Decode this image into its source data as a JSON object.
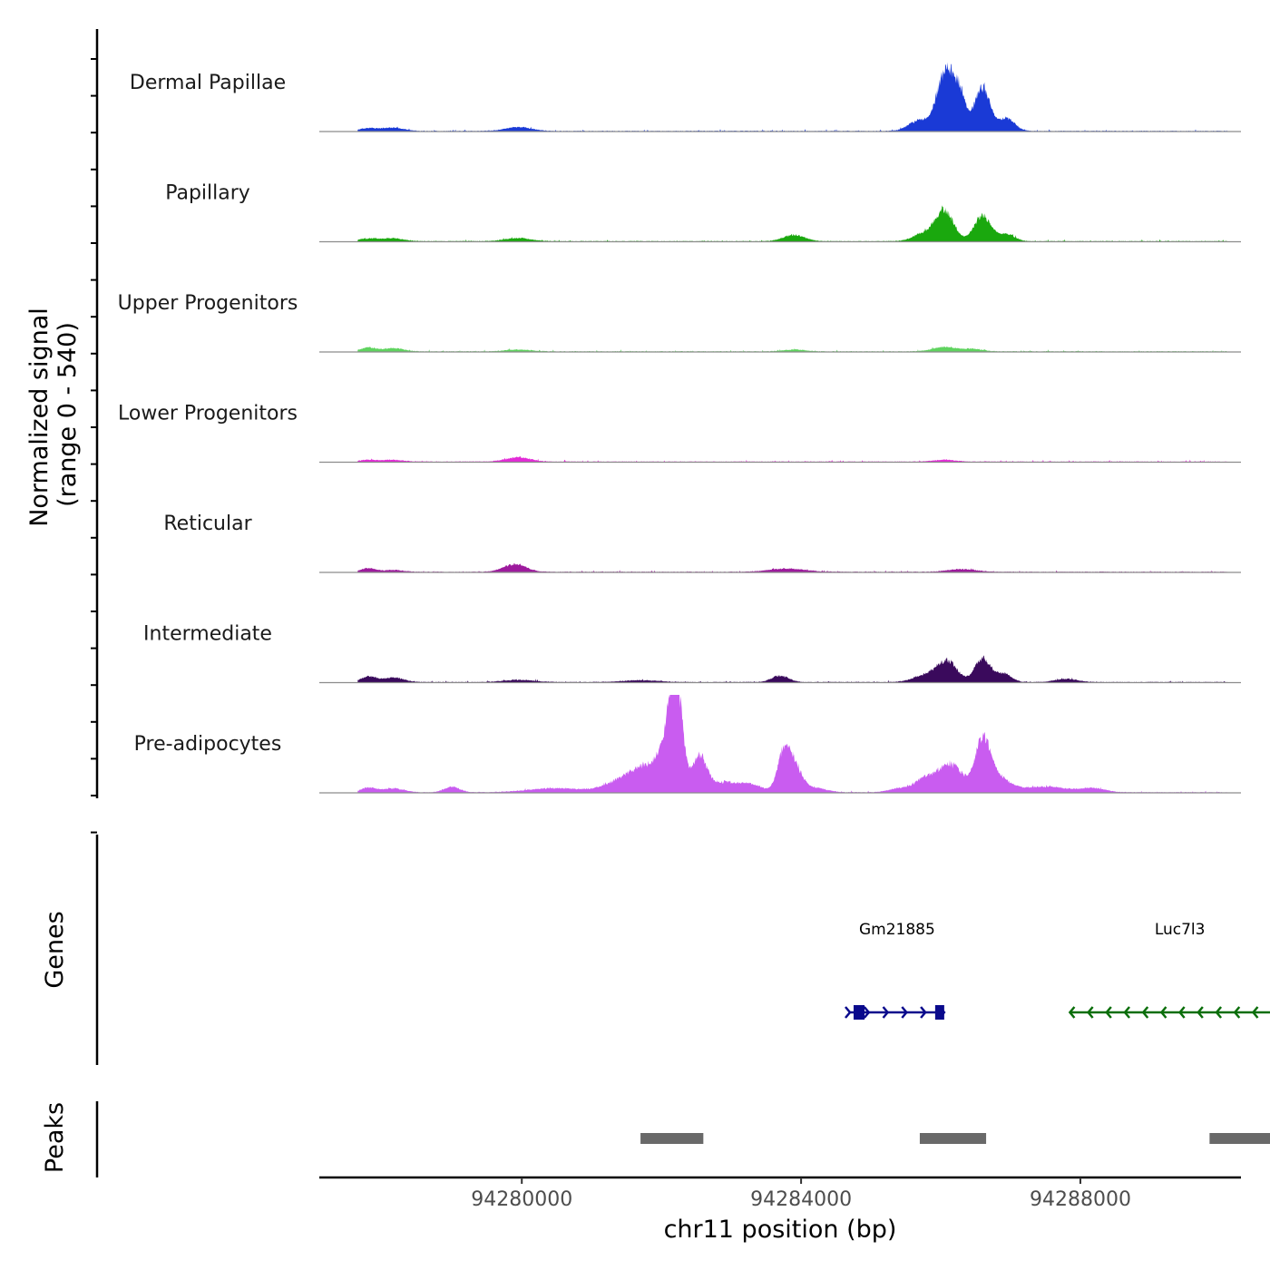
{
  "chart_data": {
    "type": "area",
    "subtype": "genome-coverage-track",
    "ylabel_line1": "Normalized signal",
    "ylabel_line2": "(range 0 - 540)",
    "yrange": [
      0,
      540
    ],
    "xlabel": "chr11 position (bp)",
    "chromosome": "chr11",
    "xlim": [
      94277100,
      94290300
    ],
    "xticks": [
      94280000,
      94284000,
      94288000
    ],
    "xtick_labels": [
      "94280000",
      "94284000",
      "94288000"
    ],
    "tracks": [
      {
        "name": "Dermal Papillae",
        "color": "#1a3ad6",
        "peaks": [
          {
            "center": 94277800,
            "height": 15,
            "width": 130
          },
          {
            "center": 94278150,
            "height": 18,
            "width": 150
          },
          {
            "center": 94279950,
            "height": 22,
            "width": 180
          },
          {
            "center": 94285700,
            "height": 60,
            "width": 150
          },
          {
            "center": 94286050,
            "height": 300,
            "width": 110
          },
          {
            "center": 94286250,
            "height": 220,
            "width": 100
          },
          {
            "center": 94286600,
            "height": 240,
            "width": 110
          },
          {
            "center": 94286950,
            "height": 70,
            "width": 110
          }
        ]
      },
      {
        "name": "Papillary",
        "color": "#1aa80e",
        "peaks": [
          {
            "center": 94277800,
            "height": 14,
            "width": 130
          },
          {
            "center": 94278150,
            "height": 16,
            "width": 150
          },
          {
            "center": 94279950,
            "height": 18,
            "width": 180
          },
          {
            "center": 94283900,
            "height": 35,
            "width": 150
          },
          {
            "center": 94285750,
            "height": 40,
            "width": 150
          },
          {
            "center": 94286050,
            "height": 170,
            "width": 130
          },
          {
            "center": 94286600,
            "height": 140,
            "width": 120
          },
          {
            "center": 94286950,
            "height": 40,
            "width": 110
          }
        ]
      },
      {
        "name": "Upper Progenitors",
        "color": "#5fd35f",
        "peaks": [
          {
            "center": 94277800,
            "height": 22,
            "width": 100
          },
          {
            "center": 94278150,
            "height": 18,
            "width": 150
          },
          {
            "center": 94279950,
            "height": 10,
            "width": 180
          },
          {
            "center": 94283900,
            "height": 10,
            "width": 150
          },
          {
            "center": 94286050,
            "height": 25,
            "width": 160
          },
          {
            "center": 94286450,
            "height": 14,
            "width": 140
          }
        ]
      },
      {
        "name": "Lower Progenitors",
        "color": "#e22ad6",
        "peaks": [
          {
            "center": 94277800,
            "height": 10,
            "width": 110
          },
          {
            "center": 94278150,
            "height": 10,
            "width": 150
          },
          {
            "center": 94279950,
            "height": 24,
            "width": 170
          },
          {
            "center": 94286050,
            "height": 10,
            "width": 160
          }
        ]
      },
      {
        "name": "Reticular",
        "color": "#9d1a9d",
        "peaks": [
          {
            "center": 94277800,
            "height": 20,
            "width": 100
          },
          {
            "center": 94278150,
            "height": 10,
            "width": 150
          },
          {
            "center": 94279900,
            "height": 42,
            "width": 160
          },
          {
            "center": 94283800,
            "height": 18,
            "width": 250
          },
          {
            "center": 94286300,
            "height": 15,
            "width": 200
          }
        ]
      },
      {
        "name": "Intermediate",
        "color": "#3a0a5c",
        "peaks": [
          {
            "center": 94277800,
            "height": 30,
            "width": 100
          },
          {
            "center": 94278150,
            "height": 25,
            "width": 150
          },
          {
            "center": 94279950,
            "height": 12,
            "width": 220
          },
          {
            "center": 94281700,
            "height": 10,
            "width": 250
          },
          {
            "center": 94283700,
            "height": 35,
            "width": 120
          },
          {
            "center": 94285800,
            "height": 40,
            "width": 180
          },
          {
            "center": 94286100,
            "height": 110,
            "width": 140
          },
          {
            "center": 94286600,
            "height": 130,
            "width": 110
          },
          {
            "center": 94286900,
            "height": 45,
            "width": 110
          },
          {
            "center": 94287800,
            "height": 18,
            "width": 150
          }
        ]
      },
      {
        "name": "Pre-adipocytes",
        "color": "#c95cf0",
        "peaks": [
          {
            "center": 94277800,
            "height": 25,
            "width": 100
          },
          {
            "center": 94278150,
            "height": 22,
            "width": 150
          },
          {
            "center": 94279000,
            "height": 30,
            "width": 110
          },
          {
            "center": 94280500,
            "height": 22,
            "width": 400
          },
          {
            "center": 94281450,
            "height": 60,
            "width": 250
          },
          {
            "center": 94281800,
            "height": 110,
            "width": 220
          },
          {
            "center": 94282200,
            "height": 540,
            "width": 90
          },
          {
            "center": 94282100,
            "height": 180,
            "width": 150
          },
          {
            "center": 94282550,
            "height": 190,
            "width": 100
          },
          {
            "center": 94282900,
            "height": 55,
            "width": 220
          },
          {
            "center": 94283300,
            "height": 35,
            "width": 160
          },
          {
            "center": 94283750,
            "height": 200,
            "width": 90
          },
          {
            "center": 94283900,
            "height": 140,
            "width": 110
          },
          {
            "center": 94284200,
            "height": 25,
            "width": 160
          },
          {
            "center": 94285400,
            "height": 20,
            "width": 150
          },
          {
            "center": 94285800,
            "height": 80,
            "width": 160
          },
          {
            "center": 94286150,
            "height": 150,
            "width": 160
          },
          {
            "center": 94286600,
            "height": 260,
            "width": 110
          },
          {
            "center": 94286800,
            "height": 80,
            "width": 180
          },
          {
            "center": 94287500,
            "height": 30,
            "width": 350
          },
          {
            "center": 94288200,
            "height": 20,
            "width": 160
          }
        ]
      }
    ],
    "genes": [
      {
        "name": "Gm21885",
        "start": 94284700,
        "end": 94286050,
        "strand": "+",
        "color": "#0a0a8c"
      },
      {
        "name": "Luc7l3",
        "start": 94287850,
        "end": 94291000,
        "strand": "-",
        "color": "#0a6e0a"
      }
    ],
    "genes_label": "Genes",
    "peaks_label": "Peaks",
    "peak_regions": [
      {
        "start": 94281700,
        "end": 94282600
      },
      {
        "start": 94285700,
        "end": 94286650
      },
      {
        "start": 94289850,
        "end": 94290750
      }
    ],
    "peak_color": "#696969"
  }
}
